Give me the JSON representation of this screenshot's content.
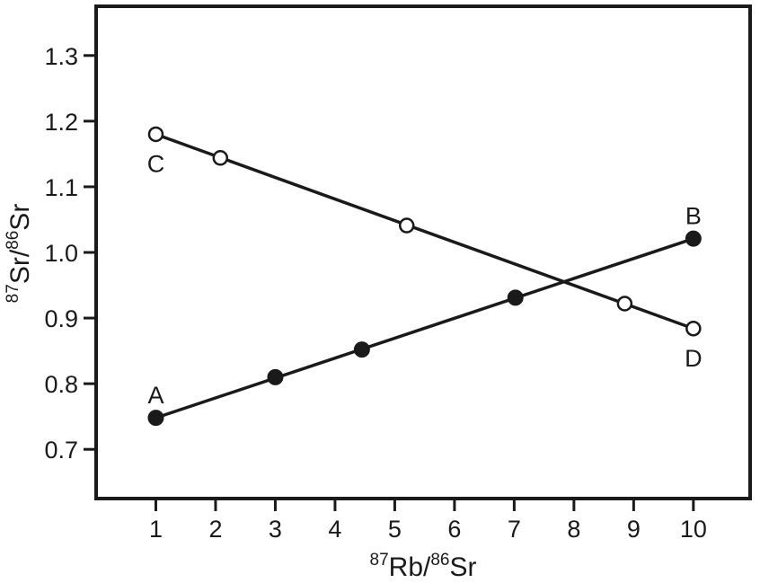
{
  "chart_data": {
    "type": "line",
    "xlabel": {
      "sup1": "87",
      "main1": "Rb/",
      "sup2": "86",
      "main2": "Sr"
    },
    "ylabel": {
      "sup1": "87",
      "main1": "Sr/",
      "sup2": "86",
      "main2": "Sr"
    },
    "xlim": [
      0.0,
      10.95
    ],
    "ylim": [
      0.625,
      1.375
    ],
    "xticks": [
      1,
      2,
      3,
      4,
      5,
      6,
      7,
      8,
      9,
      10
    ],
    "xtick_labels": [
      "1",
      "2",
      "3",
      "4",
      "5",
      "6",
      "7",
      "8",
      "9",
      "10"
    ],
    "yticks": [
      0.7,
      0.8,
      0.9,
      1.0,
      1.1,
      1.2,
      1.3
    ],
    "ytick_labels": [
      "0.7",
      "0.8",
      "0.9",
      "1.0",
      "1.1",
      "1.2",
      "1.3"
    ],
    "grid": false,
    "series": [
      {
        "marker": "filled-circle",
        "line": {
          "x": [
            1.0,
            10.0
          ],
          "y": [
            0.748,
            1.021
          ]
        },
        "points": {
          "x": [
            1.0,
            3.0,
            4.45,
            7.02,
            10.0
          ],
          "y": [
            0.748,
            0.81,
            0.852,
            0.931,
            1.021
          ]
        },
        "end_labels": [
          {
            "text": "A",
            "x": 1.0,
            "y": 0.748,
            "place": "above"
          },
          {
            "text": "B",
            "x": 10.0,
            "y": 1.021,
            "place": "above"
          }
        ]
      },
      {
        "marker": "open-circle",
        "line": {
          "x": [
            1.0,
            10.0
          ],
          "y": [
            1.18,
            0.884
          ]
        },
        "points": {
          "x": [
            1.0,
            2.08,
            5.2,
            8.85,
            10.0
          ],
          "y": [
            1.18,
            1.144,
            1.041,
            0.922,
            0.884
          ]
        },
        "end_labels": [
          {
            "text": "C",
            "x": 1.0,
            "y": 1.18,
            "place": "below"
          },
          {
            "text": "D",
            "x": 10.0,
            "y": 0.884,
            "place": "below"
          }
        ]
      }
    ],
    "colors": {
      "ink": "#1a1a1a",
      "background": "#ffffff"
    }
  }
}
